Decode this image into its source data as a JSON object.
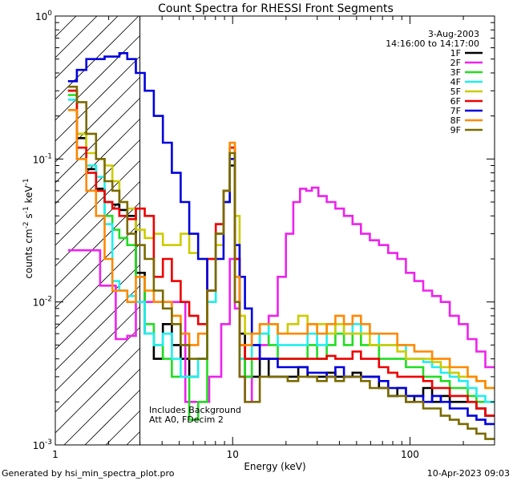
{
  "footer": {
    "generated_by": "Generated by hsi_min_spectra_plot.pro",
    "timestamp": "10-Apr-2023 09:03"
  },
  "colors": {
    "1F": "#000000",
    "2F": "#ee22ee",
    "3F": "#22dd22",
    "4F": "#22eeee",
    "5F": "#cccc00",
    "6F": "#ee0000",
    "7F": "#0000dd",
    "8F": "#ff8800",
    "9F": "#7a6a00"
  },
  "chart_data": {
    "type": "line",
    "title": "Count Spectra for RHESSI Front Segments",
    "xlabel": "Energy (keV)",
    "ylabel_base": "counts cm",
    "ylabel_sup1": "-2",
    "ylabel_mid1": " s",
    "ylabel_sup2": "-1",
    "ylabel_mid2": " keV",
    "ylabel_sup3": "-1",
    "xscale": "log",
    "yscale": "log",
    "xlim": [
      1,
      300
    ],
    "ylim": [
      0.001,
      1.0
    ],
    "x_tick_labels": [
      {
        "value": 1,
        "label": "1"
      },
      {
        "value": 10,
        "label": "10"
      },
      {
        "value": 100,
        "label": "100"
      }
    ],
    "y_tick_labels": [
      {
        "value": 0.001,
        "base": "10",
        "exp": "-3"
      },
      {
        "value": 0.01,
        "base": "10",
        "exp": "-2"
      },
      {
        "value": 0.1,
        "base": "10",
        "exp": "-1"
      },
      {
        "value": 1.0,
        "base": "10",
        "exp": "0"
      }
    ],
    "date_text": "3-Aug-2003",
    "time_range_text": "14:16:00 to 14:17:00",
    "annotations": [
      "Includes Background",
      "Att A0, FDecim 2"
    ],
    "hatched_region": {
      "xmin": 1,
      "xmax": 3
    },
    "legend_position": "top-right",
    "series": [
      {
        "name": "1F",
        "color": "#000000",
        "x": [
          1.25,
          1.4,
          1.6,
          1.8,
          2.0,
          2.2,
          2.4,
          2.7,
          3.0,
          3.4,
          3.8,
          4.3,
          4.8,
          5.4,
          6.0,
          6.8,
          7.6,
          8.5,
          9.3,
          10.0,
          10.6,
          11.3,
          12.2,
          13.5,
          15,
          17,
          19,
          22,
          25,
          28,
          32,
          36,
          40,
          45,
          50,
          56,
          63,
          71,
          80,
          90,
          100,
          112,
          126,
          141,
          158,
          178,
          200,
          224,
          251,
          282
        ],
        "y": [
          0.3,
          0.14,
          0.085,
          0.062,
          0.05,
          0.048,
          0.044,
          0.04,
          0.016,
          0.006,
          0.004,
          0.007,
          0.005,
          0.004,
          0.003,
          0.004,
          0.012,
          0.03,
          0.05,
          0.09,
          0.02,
          0.006,
          0.003,
          0.003,
          0.004,
          0.003,
          0.003,
          0.003,
          0.0035,
          0.003,
          0.003,
          0.0032,
          0.003,
          0.003,
          0.0032,
          0.003,
          0.003,
          0.0025,
          0.0022,
          0.0025,
          0.002,
          0.0022,
          0.0025,
          0.002,
          0.0022,
          0.002,
          0.002,
          0.002,
          0.0018,
          0.0016
        ]
      },
      {
        "name": "2F",
        "color": "#ee22ee",
        "x": [
          1.25,
          1.6,
          2.0,
          2.4,
          2.7,
          3.0,
          4.3,
          6.8,
          8.0,
          9.3,
          10.0,
          10.6,
          11.3,
          12.2,
          13.5,
          15,
          17,
          19,
          21,
          23,
          25,
          27,
          29,
          32,
          36,
          40,
          45,
          50,
          56,
          63,
          71,
          80,
          90,
          100,
          112,
          126,
          141,
          158,
          178,
          200,
          224,
          251,
          282
        ],
        "y": [
          0.023,
          0.023,
          0.013,
          0.0055,
          0.0058,
          0.01,
          0.01,
          0.002,
          0.003,
          0.007,
          0.02,
          0.009,
          0.003,
          0.002,
          0.004,
          0.005,
          0.008,
          0.015,
          0.03,
          0.05,
          0.062,
          0.06,
          0.063,
          0.055,
          0.05,
          0.045,
          0.04,
          0.035,
          0.03,
          0.027,
          0.025,
          0.022,
          0.02,
          0.016,
          0.014,
          0.012,
          0.011,
          0.01,
          0.008,
          0.007,
          0.0055,
          0.0045,
          0.0035
        ]
      },
      {
        "name": "3F",
        "color": "#22dd22",
        "x": [
          1.25,
          1.4,
          1.6,
          1.8,
          2.0,
          2.2,
          2.4,
          2.7,
          3.0,
          3.4,
          3.8,
          4.3,
          4.8,
          5.4,
          6.0,
          6.8,
          7.6,
          8.5,
          9.3,
          10.0,
          10.6,
          11.3,
          12.2,
          13.5,
          15,
          17,
          19,
          22,
          25,
          28,
          32,
          36,
          40,
          45,
          50,
          56,
          63,
          71,
          80,
          90,
          100,
          112,
          126,
          141,
          158,
          178,
          200,
          224,
          251,
          282
        ],
        "y": [
          0.28,
          0.15,
          0.09,
          0.06,
          0.04,
          0.032,
          0.028,
          0.025,
          0.015,
          0.007,
          0.005,
          0.004,
          0.003,
          0.003,
          0.0015,
          0.002,
          0.01,
          0.03,
          0.06,
          0.12,
          0.015,
          0.004,
          0.003,
          0.005,
          0.006,
          0.005,
          0.004,
          0.004,
          0.004,
          0.005,
          0.004,
          0.005,
          0.006,
          0.005,
          0.006,
          0.005,
          0.005,
          0.004,
          0.004,
          0.004,
          0.0035,
          0.0035,
          0.003,
          0.003,
          0.0028,
          0.0025,
          0.0025,
          0.0022,
          0.002,
          0.002
        ]
      },
      {
        "name": "4F",
        "color": "#22eeee",
        "x": [
          1.25,
          1.4,
          1.6,
          1.8,
          2.0,
          2.2,
          2.4,
          2.7,
          3.0,
          3.4,
          3.8,
          4.3,
          4.8,
          5.4,
          6.0,
          6.8,
          7.6,
          8.5,
          9.3,
          10.0,
          10.6,
          11.3,
          12.2,
          13.5,
          15,
          17,
          19,
          22,
          25,
          28,
          32,
          36,
          40,
          45,
          50,
          56,
          63,
          71,
          80,
          90,
          100,
          112,
          126,
          141,
          158,
          178,
          200,
          224,
          251,
          282
        ],
        "y": [
          0.26,
          0.1,
          0.09,
          0.075,
          0.035,
          0.014,
          0.012,
          0.011,
          0.01,
          0.006,
          0.005,
          0.006,
          0.004,
          0.003,
          0.003,
          0.004,
          0.01,
          0.03,
          0.06,
          0.12,
          0.015,
          0.004,
          0.004,
          0.005,
          0.006,
          0.007,
          0.005,
          0.005,
          0.005,
          0.006,
          0.005,
          0.006,
          0.007,
          0.006,
          0.007,
          0.006,
          0.006,
          0.005,
          0.005,
          0.005,
          0.004,
          0.004,
          0.0038,
          0.0035,
          0.0032,
          0.003,
          0.0028,
          0.0025,
          0.0022,
          0.002
        ]
      },
      {
        "name": "5F",
        "color": "#cccc00",
        "x": [
          1.25,
          1.4,
          1.6,
          1.8,
          2.0,
          2.2,
          2.4,
          2.7,
          3.0,
          3.4,
          3.8,
          4.3,
          4.8,
          5.4,
          6.0,
          6.8,
          7.6,
          8.5,
          9.3,
          10.0,
          10.6,
          11.3,
          12.2,
          13.5,
          15,
          17,
          19,
          22,
          25,
          28,
          32,
          36,
          40,
          45,
          50,
          56,
          63,
          71,
          80,
          90,
          100,
          112,
          126,
          141,
          158,
          178,
          200,
          224,
          251,
          282
        ],
        "y": [
          0.3,
          0.15,
          0.11,
          0.1,
          0.09,
          0.07,
          0.05,
          0.045,
          0.032,
          0.028,
          0.03,
          0.025,
          0.025,
          0.03,
          0.022,
          0.02,
          0.02,
          0.025,
          0.05,
          0.12,
          0.04,
          0.008,
          0.006,
          0.006,
          0.007,
          0.007,
          0.006,
          0.007,
          0.008,
          0.007,
          0.007,
          0.006,
          0.007,
          0.006,
          0.006,
          0.006,
          0.005,
          0.005,
          0.005,
          0.0045,
          0.004,
          0.004,
          0.004,
          0.0038,
          0.0035,
          0.0032,
          0.003,
          0.003,
          0.0028,
          0.0025
        ]
      },
      {
        "name": "6F",
        "color": "#ee0000",
        "x": [
          1.25,
          1.4,
          1.6,
          1.8,
          2.0,
          2.2,
          2.4,
          2.7,
          3.0,
          3.4,
          3.8,
          4.3,
          4.8,
          5.4,
          6.0,
          6.8,
          7.6,
          8.5,
          9.3,
          10.0,
          10.6,
          11.3,
          12.2,
          13.5,
          15,
          17,
          19,
          22,
          25,
          28,
          32,
          36,
          40,
          45,
          50,
          56,
          63,
          71,
          80,
          90,
          100,
          112,
          126,
          141,
          158,
          178,
          200,
          224,
          251,
          282
        ],
        "y": [
          0.3,
          0.12,
          0.08,
          0.06,
          0.05,
          0.045,
          0.04,
          0.038,
          0.045,
          0.04,
          0.015,
          0.02,
          0.014,
          0.01,
          0.008,
          0.007,
          0.02,
          0.035,
          0.06,
          0.12,
          0.02,
          0.005,
          0.004,
          0.004,
          0.004,
          0.004,
          0.004,
          0.004,
          0.004,
          0.004,
          0.004,
          0.0042,
          0.004,
          0.004,
          0.0045,
          0.004,
          0.004,
          0.0035,
          0.0032,
          0.003,
          0.003,
          0.003,
          0.0028,
          0.0025,
          0.0025,
          0.0022,
          0.0022,
          0.002,
          0.0018,
          0.0016
        ]
      },
      {
        "name": "7F",
        "color": "#0000dd",
        "x": [
          1.25,
          1.4,
          1.6,
          1.8,
          2.0,
          2.2,
          2.4,
          2.7,
          3.0,
          3.4,
          3.8,
          4.3,
          4.8,
          5.4,
          6.0,
          6.8,
          7.6,
          8.5,
          9.3,
          10.0,
          10.6,
          11.3,
          12.2,
          13.5,
          15,
          17,
          19,
          22,
          25,
          28,
          32,
          36,
          40,
          45,
          50,
          56,
          63,
          71,
          80,
          90,
          100,
          112,
          126,
          141,
          158,
          178,
          200,
          224,
          251,
          282
        ],
        "y": [
          0.35,
          0.42,
          0.5,
          0.5,
          0.52,
          0.52,
          0.55,
          0.5,
          0.4,
          0.3,
          0.2,
          0.13,
          0.08,
          0.05,
          0.03,
          0.02,
          0.012,
          0.02,
          0.05,
          0.1,
          0.025,
          0.015,
          0.009,
          0.005,
          0.004,
          0.004,
          0.0035,
          0.0035,
          0.0035,
          0.0032,
          0.0032,
          0.003,
          0.0035,
          0.003,
          0.003,
          0.003,
          0.003,
          0.0028,
          0.0025,
          0.0025,
          0.0022,
          0.0022,
          0.002,
          0.0022,
          0.002,
          0.0018,
          0.0018,
          0.0016,
          0.0015,
          0.0014
        ]
      },
      {
        "name": "8F",
        "color": "#ff8800",
        "x": [
          1.25,
          1.4,
          1.6,
          1.8,
          2.0,
          2.2,
          2.4,
          2.7,
          3.0,
          3.4,
          3.8,
          4.3,
          4.8,
          5.4,
          6.0,
          6.8,
          7.6,
          8.5,
          9.3,
          10.0,
          10.6,
          11.3,
          12.2,
          13.5,
          15,
          17,
          19,
          22,
          25,
          28,
          32,
          36,
          40,
          45,
          50,
          56,
          63,
          71,
          80,
          90,
          100,
          112,
          126,
          141,
          158,
          178,
          200,
          224,
          251,
          282
        ],
        "y": [
          0.22,
          0.1,
          0.06,
          0.04,
          0.02,
          0.012,
          0.012,
          0.01,
          0.015,
          0.012,
          0.01,
          0.01,
          0.008,
          0.006,
          0.005,
          0.006,
          0.012,
          0.03,
          0.06,
          0.13,
          0.015,
          0.005,
          0.005,
          0.006,
          0.007,
          0.007,
          0.006,
          0.006,
          0.006,
          0.007,
          0.006,
          0.007,
          0.008,
          0.007,
          0.008,
          0.007,
          0.006,
          0.006,
          0.006,
          0.005,
          0.005,
          0.0045,
          0.0045,
          0.004,
          0.004,
          0.0035,
          0.0035,
          0.003,
          0.0028,
          0.0025
        ]
      },
      {
        "name": "9F",
        "color": "#7a6a00",
        "x": [
          1.25,
          1.4,
          1.6,
          1.8,
          2.0,
          2.2,
          2.4,
          2.7,
          3.0,
          3.4,
          3.8,
          4.3,
          4.8,
          5.4,
          6.0,
          6.8,
          7.6,
          8.5,
          9.3,
          10.0,
          10.6,
          11.3,
          12.2,
          13.5,
          15,
          17,
          19,
          22,
          25,
          28,
          32,
          36,
          40,
          45,
          50,
          56,
          63,
          71,
          80,
          90,
          100,
          112,
          126,
          141,
          158,
          178,
          200,
          224,
          251,
          282
        ],
        "y": [
          0.32,
          0.25,
          0.15,
          0.1,
          0.07,
          0.06,
          0.05,
          0.03,
          0.025,
          0.02,
          0.012,
          0.009,
          0.007,
          0.005,
          0.004,
          0.004,
          0.012,
          0.03,
          0.06,
          0.11,
          0.01,
          0.003,
          0.002,
          0.002,
          0.003,
          0.003,
          0.003,
          0.0028,
          0.003,
          0.003,
          0.0028,
          0.003,
          0.0028,
          0.003,
          0.003,
          0.0028,
          0.0025,
          0.0025,
          0.0022,
          0.0022,
          0.002,
          0.002,
          0.0018,
          0.0018,
          0.0016,
          0.0015,
          0.0014,
          0.0013,
          0.0012,
          0.0011
        ]
      }
    ]
  }
}
